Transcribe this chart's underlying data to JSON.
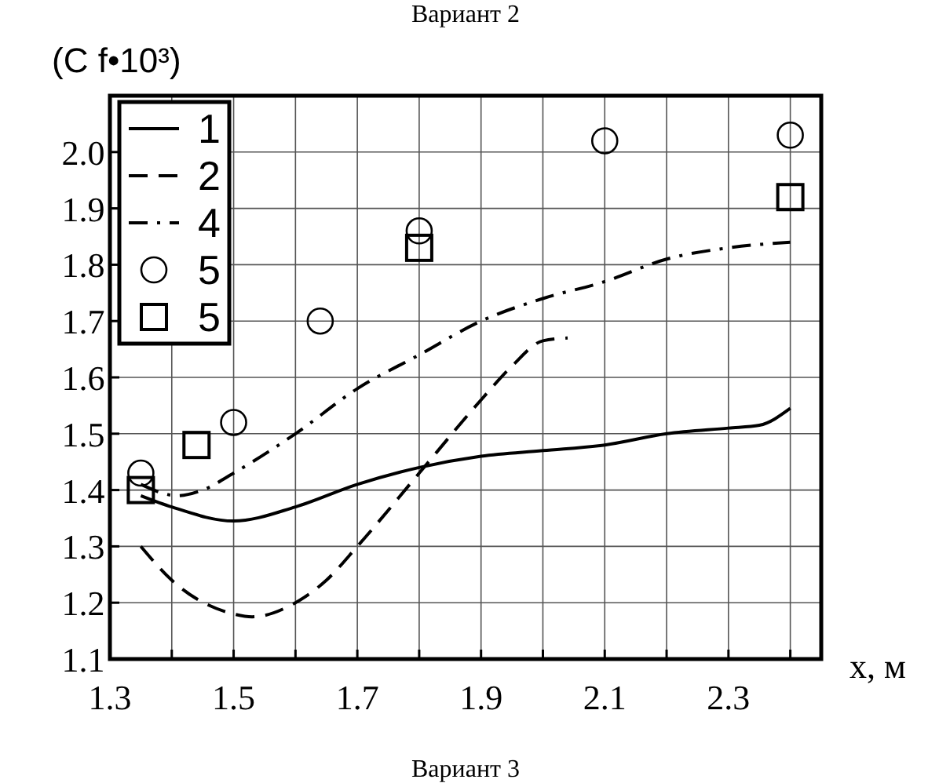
{
  "chart_data": {
    "type": "line",
    "title": "Вариант 2",
    "ylabel": "(C f•10³)",
    "xlabel": "x, м",
    "annotations": [
      "Вариант 3"
    ],
    "xlim": [
      1.3,
      2.45
    ],
    "ylim": [
      1.1,
      2.1
    ],
    "xticks": [
      1.3,
      {
        "value": 1.4,
        "label": null
      },
      1.5,
      {
        "value": 1.6,
        "label": null
      },
      1.7,
      {
        "value": 1.8,
        "label": null
      },
      1.9,
      {
        "value": 2.0,
        "label": null
      },
      2.1,
      {
        "value": 2.2,
        "label": null
      },
      2.3,
      {
        "value": 2.4,
        "label": null
      }
    ],
    "yticks": [
      1.1,
      1.2,
      1.3,
      1.4,
      1.5,
      1.6,
      1.7,
      1.8,
      1.9,
      {
        "value": 2.0,
        "label": "2.0"
      }
    ],
    "grid": true,
    "legend": "top left",
    "series": [
      {
        "name": "1",
        "line_style": "solid",
        "color": "#000000",
        "x": [
          1.35,
          1.4,
          1.5,
          1.6,
          1.7,
          1.8,
          1.9,
          2.0,
          2.1,
          2.2,
          2.3,
          2.35,
          2.4
        ],
        "values": [
          1.39,
          1.37,
          1.345,
          1.37,
          1.41,
          1.44,
          1.46,
          1.47,
          1.48,
          1.5,
          1.51,
          1.515,
          1.545
        ]
      },
      {
        "name": "2",
        "line_style": "dashed",
        "color": "#000000",
        "x": [
          1.35,
          1.4,
          1.5,
          1.53,
          1.6,
          1.65,
          1.7,
          1.8,
          1.9,
          1.95,
          2.0,
          2.04
        ],
        "values": [
          1.3,
          1.24,
          1.18,
          1.175,
          1.2,
          1.24,
          1.3,
          1.43,
          1.56,
          1.62,
          1.665,
          1.67
        ]
      },
      {
        "name": "4",
        "line_style": "dashdot",
        "color": "#000000",
        "x": [
          1.35,
          1.41,
          1.45,
          1.5,
          1.6,
          1.7,
          1.8,
          1.9,
          2.0,
          2.1,
          2.2,
          2.3,
          2.4
        ],
        "values": [
          1.41,
          1.39,
          1.4,
          1.43,
          1.5,
          1.58,
          1.64,
          1.7,
          1.74,
          1.77,
          1.81,
          1.83,
          1.84
        ]
      },
      {
        "name": "5",
        "type": "scatter",
        "marker": "circle",
        "color": "#000000",
        "x": [
          1.35,
          1.5,
          1.64,
          1.8,
          2.1,
          2.4
        ],
        "values": [
          1.43,
          1.52,
          1.7,
          1.86,
          2.02,
          2.03
        ]
      },
      {
        "name": "5",
        "type": "scatter",
        "marker": "square",
        "color": "#000000",
        "x": [
          1.35,
          1.44,
          1.8,
          2.4
        ],
        "values": [
          1.4,
          1.48,
          1.83,
          1.92
        ]
      }
    ]
  }
}
